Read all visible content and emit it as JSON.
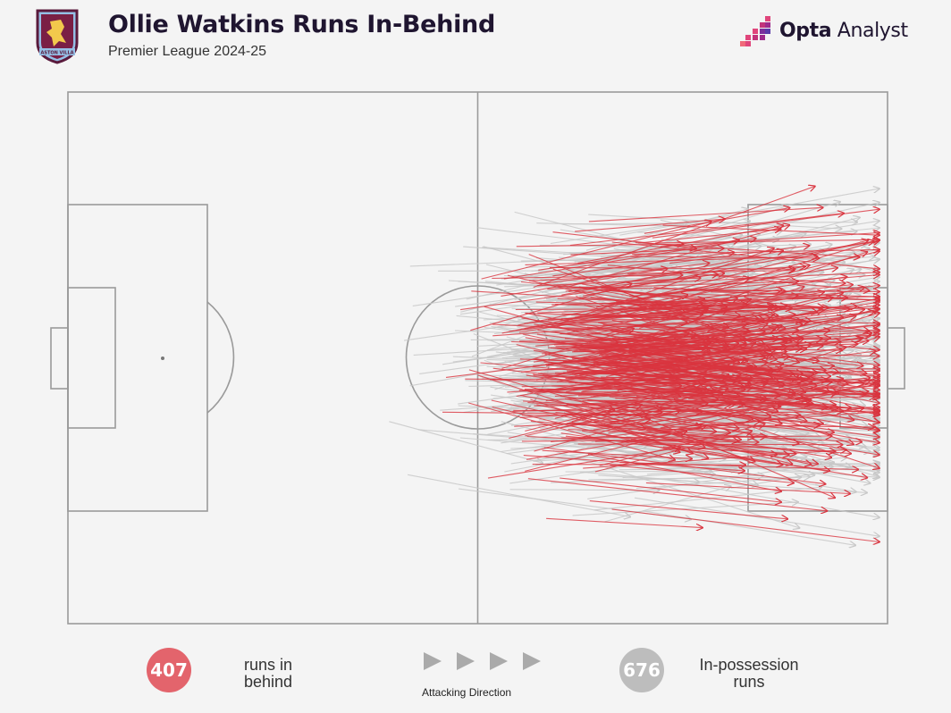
{
  "header": {
    "title": "Ollie Watkins Runs In-Behind",
    "subtitle": "Premier League 2024-25",
    "brand_bold": "Opta",
    "brand_light": " Analyst",
    "crest_text": "ASTON VILLA"
  },
  "legend": {
    "runs_behind": {
      "count": "407",
      "label": "runs in\nbehind",
      "color": "#e3646c"
    },
    "possession": {
      "count": "676",
      "label": "In-possession\nruns",
      "color": "#bdbdbd"
    },
    "direction_label": "Attacking Direction"
  },
  "colors": {
    "run_in_behind": "#d9343f",
    "in_possession": "#c8c8c8",
    "pitch_lines": "#9a9a9a",
    "background": "#f4f4f4"
  },
  "chart_data": {
    "type": "scatter",
    "description_units": "pitch coordinates 0-100 (x = length, attacking left to right; y = width, 0 top)",
    "series": [
      {
        "name": "runs in behind",
        "count": 407
      },
      {
        "name": "In-possession runs",
        "count": 676
      }
    ]
  }
}
